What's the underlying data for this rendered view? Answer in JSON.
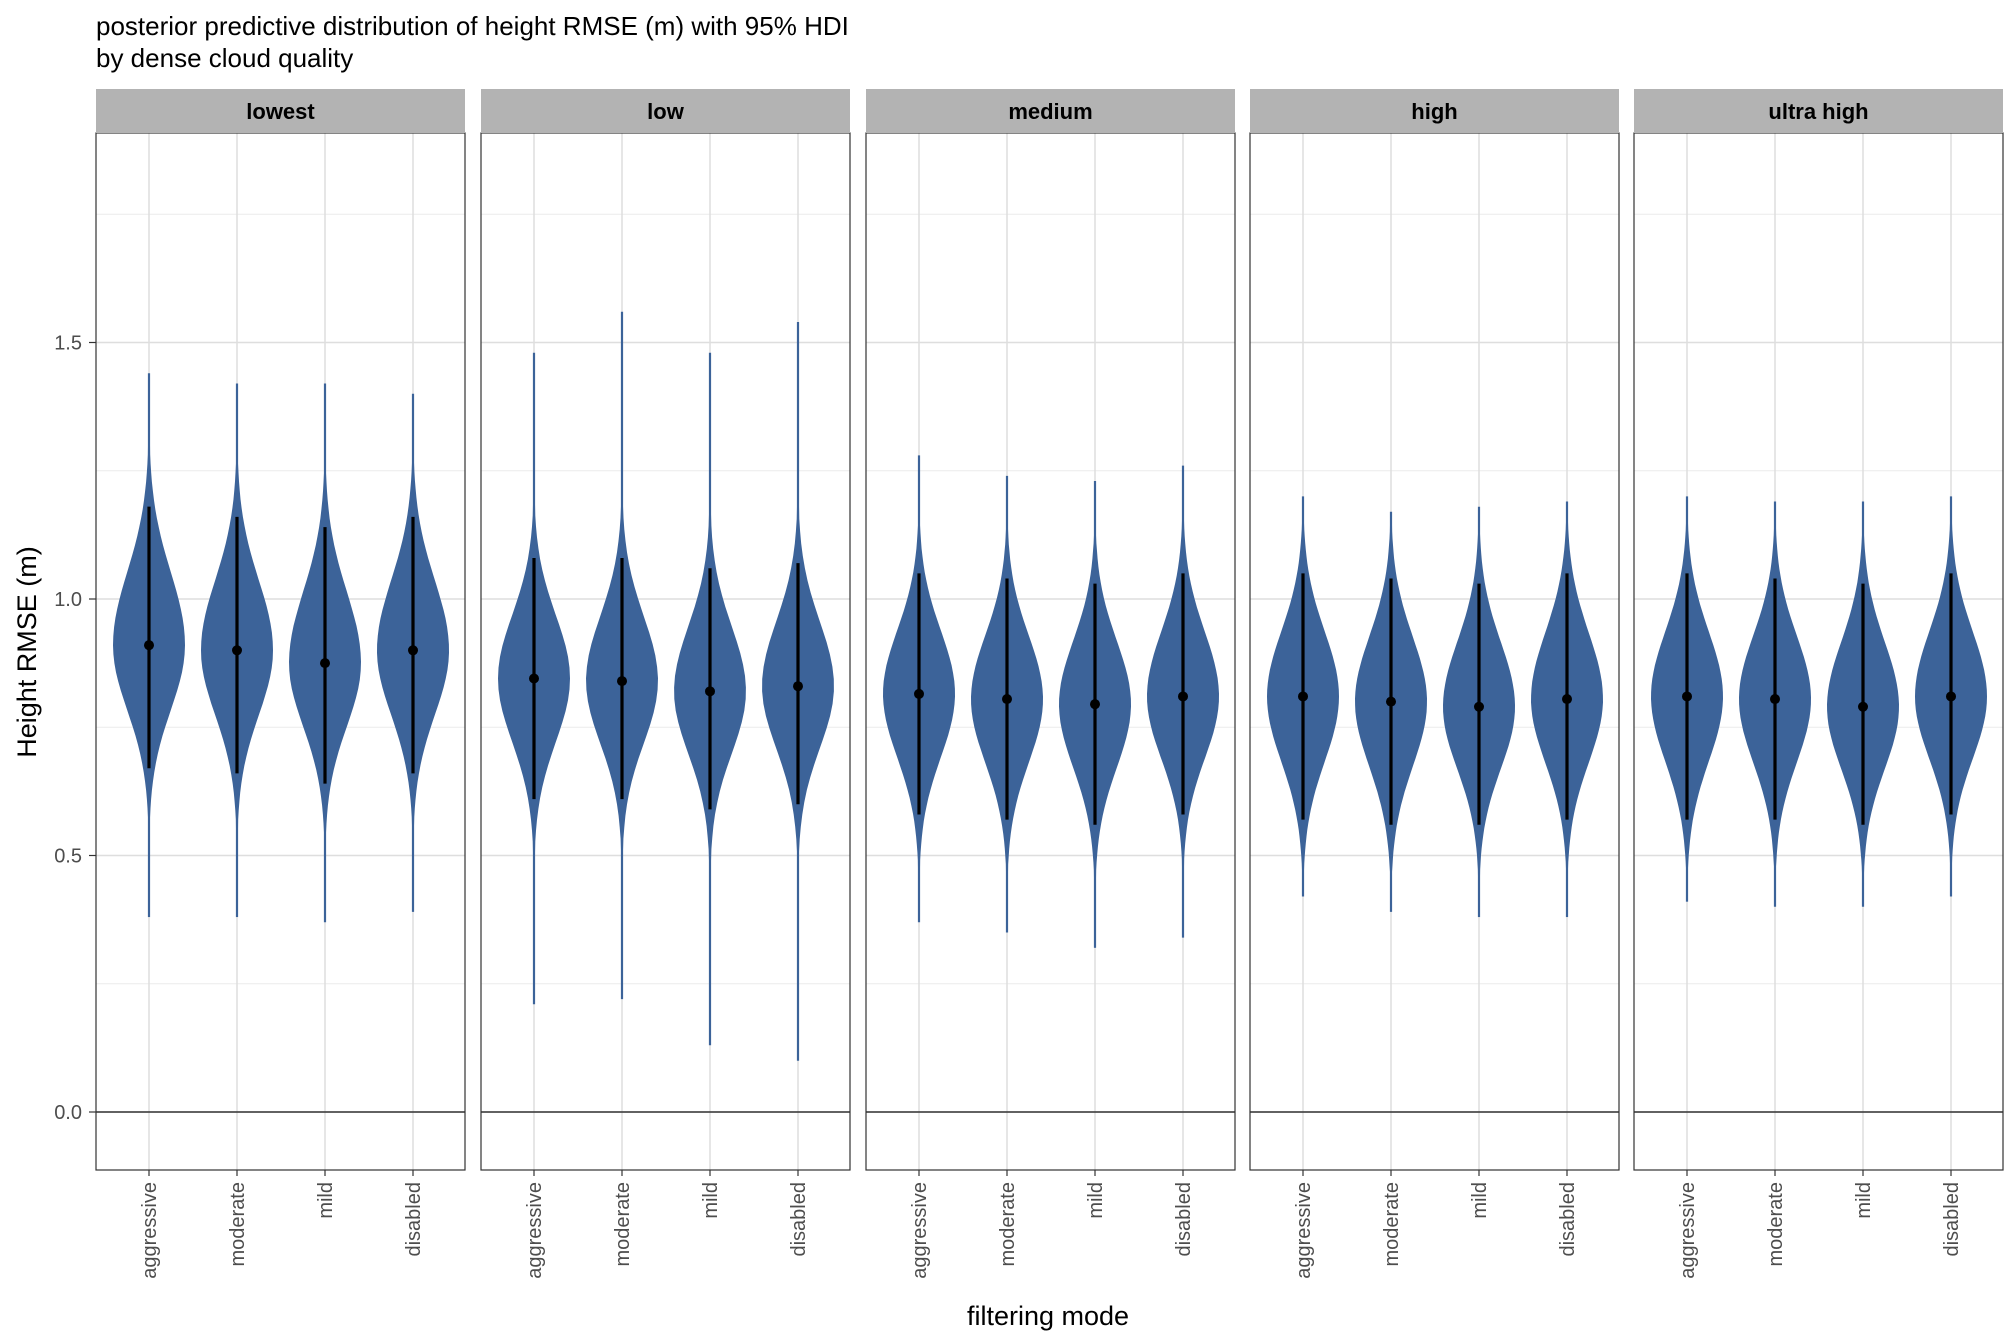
{
  "chart_data": {
    "type": "violin",
    "title": "posterior predictive distribution of height RMSE (m) with 95% HDI\nby dense cloud quality",
    "xlabel": "filtering mode",
    "ylabel": "Height RMSE (m)",
    "ylim": [
      -0.11,
      1.91
    ],
    "yticks": [
      0.0,
      0.5,
      1.0,
      1.5
    ],
    "ytick_labels": [
      "0.0",
      "0.5",
      "1.0",
      "1.5"
    ],
    "grid": true,
    "reference_line": 0.0,
    "fill_color": "#3c6399",
    "point_color": "#000000",
    "strip_color": "#b3b3b3",
    "categories": [
      "aggressive",
      "moderate",
      "mild",
      "disabled"
    ],
    "panels": [
      {
        "label": "lowest",
        "violins": [
          {
            "category": "aggressive",
            "median": 0.91,
            "hdi": [
              0.67,
              1.18
            ],
            "min": 0.38,
            "max": 1.44
          },
          {
            "category": "moderate",
            "median": 0.9,
            "hdi": [
              0.66,
              1.16
            ],
            "min": 0.38,
            "max": 1.42
          },
          {
            "category": "mild",
            "median": 0.875,
            "hdi": [
              0.64,
              1.14
            ],
            "min": 0.37,
            "max": 1.42
          },
          {
            "category": "disabled",
            "median": 0.9,
            "hdi": [
              0.66,
              1.16
            ],
            "min": 0.39,
            "max": 1.4
          }
        ]
      },
      {
        "label": "low",
        "violins": [
          {
            "category": "aggressive",
            "median": 0.845,
            "hdi": [
              0.61,
              1.08
            ],
            "min": 0.21,
            "max": 1.48
          },
          {
            "category": "moderate",
            "median": 0.84,
            "hdi": [
              0.61,
              1.08
            ],
            "min": 0.22,
            "max": 1.56
          },
          {
            "category": "mild",
            "median": 0.82,
            "hdi": [
              0.59,
              1.06
            ],
            "min": 0.13,
            "max": 1.48
          },
          {
            "category": "disabled",
            "median": 0.83,
            "hdi": [
              0.6,
              1.07
            ],
            "min": 0.1,
            "max": 1.54
          }
        ]
      },
      {
        "label": "medium",
        "violins": [
          {
            "category": "aggressive",
            "median": 0.815,
            "hdi": [
              0.58,
              1.05
            ],
            "min": 0.37,
            "max": 1.28
          },
          {
            "category": "moderate",
            "median": 0.805,
            "hdi": [
              0.57,
              1.04
            ],
            "min": 0.35,
            "max": 1.24
          },
          {
            "category": "mild",
            "median": 0.795,
            "hdi": [
              0.56,
              1.03
            ],
            "min": 0.32,
            "max": 1.23
          },
          {
            "category": "disabled",
            "median": 0.81,
            "hdi": [
              0.58,
              1.05
            ],
            "min": 0.34,
            "max": 1.26
          }
        ]
      },
      {
        "label": "high",
        "violins": [
          {
            "category": "aggressive",
            "median": 0.81,
            "hdi": [
              0.57,
              1.05
            ],
            "min": 0.42,
            "max": 1.2
          },
          {
            "category": "moderate",
            "median": 0.8,
            "hdi": [
              0.56,
              1.04
            ],
            "min": 0.39,
            "max": 1.17
          },
          {
            "category": "mild",
            "median": 0.79,
            "hdi": [
              0.56,
              1.03
            ],
            "min": 0.38,
            "max": 1.18
          },
          {
            "category": "disabled",
            "median": 0.805,
            "hdi": [
              0.57,
              1.05
            ],
            "min": 0.38,
            "max": 1.19
          }
        ]
      },
      {
        "label": "ultra high",
        "violins": [
          {
            "category": "aggressive",
            "median": 0.81,
            "hdi": [
              0.57,
              1.05
            ],
            "min": 0.41,
            "max": 1.2
          },
          {
            "category": "moderate",
            "median": 0.805,
            "hdi": [
              0.57,
              1.04
            ],
            "min": 0.4,
            "max": 1.19
          },
          {
            "category": "mild",
            "median": 0.79,
            "hdi": [
              0.56,
              1.03
            ],
            "min": 0.4,
            "max": 1.19
          },
          {
            "category": "disabled",
            "median": 0.81,
            "hdi": [
              0.58,
              1.05
            ],
            "min": 0.42,
            "max": 1.2
          }
        ]
      }
    ]
  }
}
